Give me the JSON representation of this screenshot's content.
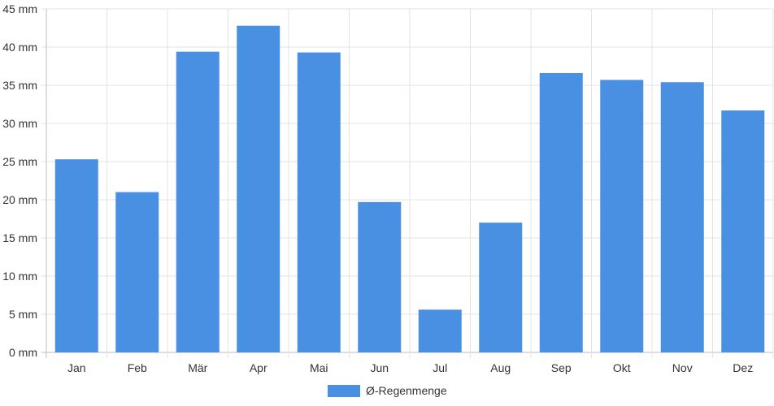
{
  "chart_data": {
    "type": "bar",
    "categories": [
      "Jan",
      "Feb",
      "Mär",
      "Apr",
      "Mai",
      "Jun",
      "Jul",
      "Aug",
      "Sep",
      "Okt",
      "Nov",
      "Dez"
    ],
    "series": [
      {
        "name": "Ø-Regenmenge",
        "values": [
          25.3,
          21.0,
          39.4,
          42.8,
          39.3,
          19.7,
          5.6,
          17.0,
          36.6,
          35.7,
          35.4,
          31.7
        ],
        "color": "#4a90e2"
      }
    ],
    "title": "",
    "xlabel": "",
    "ylabel": "",
    "ylim": [
      0,
      45
    ],
    "yticks": [
      "0 mm",
      "5 mm",
      "10 mm",
      "15 mm",
      "20 mm",
      "25 mm",
      "30 mm",
      "35 mm",
      "40 mm",
      "45 mm"
    ],
    "grid": true,
    "legend_position": "bottom-center"
  }
}
